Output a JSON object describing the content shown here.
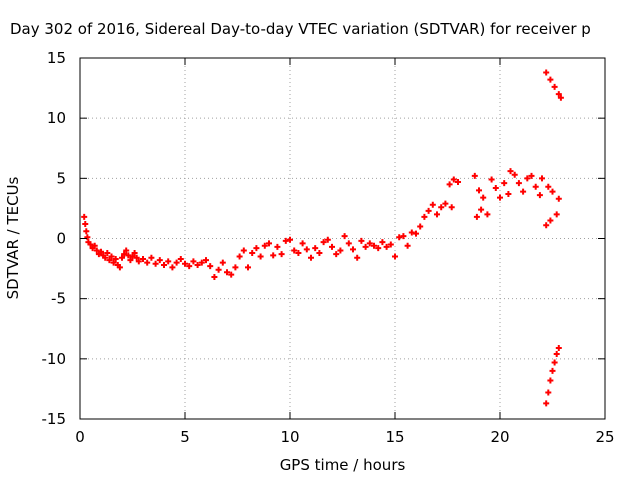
{
  "chart_data": {
    "type": "scatter",
    "title": "Day 302 of 2016, Sidereal Day-to-day VTEC variation (SDTVAR) for receiver p",
    "xlabel": "GPS time / hours",
    "ylabel": "SDTVAR / TECUs",
    "xlim": [
      0,
      25
    ],
    "ylim": [
      -15,
      15
    ],
    "xticks": [
      0,
      5,
      10,
      15,
      20,
      25
    ],
    "yticks": [
      -15,
      -10,
      -5,
      0,
      5,
      10,
      15
    ],
    "grid": true,
    "marker": "plus",
    "color": "#ff0000",
    "series": [
      {
        "name": "SDTVAR",
        "points": [
          [
            0.2,
            1.8
          ],
          [
            0.25,
            1.2
          ],
          [
            0.3,
            0.6
          ],
          [
            0.35,
            0.1
          ],
          [
            0.4,
            -0.3
          ],
          [
            0.5,
            -0.5
          ],
          [
            0.6,
            -0.8
          ],
          [
            0.7,
            -0.6
          ],
          [
            0.8,
            -1.0
          ],
          [
            0.9,
            -1.3
          ],
          [
            1.0,
            -1.1
          ],
          [
            1.1,
            -1.4
          ],
          [
            1.2,
            -1.6
          ],
          [
            1.3,
            -1.2
          ],
          [
            1.4,
            -1.8
          ],
          [
            1.5,
            -1.5
          ],
          [
            1.6,
            -2.0
          ],
          [
            1.7,
            -1.7
          ],
          [
            1.8,
            -2.2
          ],
          [
            1.9,
            -2.4
          ],
          [
            2.0,
            -1.6
          ],
          [
            2.1,
            -1.3
          ],
          [
            2.2,
            -1.0
          ],
          [
            2.3,
            -1.4
          ],
          [
            2.4,
            -1.8
          ],
          [
            2.5,
            -1.5
          ],
          [
            2.6,
            -1.2
          ],
          [
            2.7,
            -1.6
          ],
          [
            2.8,
            -1.9
          ],
          [
            3.0,
            -1.7
          ],
          [
            3.2,
            -2.0
          ],
          [
            3.4,
            -1.6
          ],
          [
            3.6,
            -2.1
          ],
          [
            3.8,
            -1.8
          ],
          [
            4.0,
            -2.2
          ],
          [
            4.2,
            -1.9
          ],
          [
            4.4,
            -2.4
          ],
          [
            4.6,
            -2.0
          ],
          [
            4.8,
            -1.7
          ],
          [
            5.0,
            -2.1
          ],
          [
            5.2,
            -2.3
          ],
          [
            5.4,
            -1.9
          ],
          [
            5.6,
            -2.2
          ],
          [
            5.8,
            -2.0
          ],
          [
            6.0,
            -1.8
          ],
          [
            6.2,
            -2.3
          ],
          [
            6.4,
            -3.2
          ],
          [
            6.6,
            -2.6
          ],
          [
            6.8,
            -2.0
          ],
          [
            7.0,
            -2.8
          ],
          [
            7.2,
            -3.0
          ],
          [
            7.4,
            -2.4
          ],
          [
            7.6,
            -1.5
          ],
          [
            7.8,
            -1.0
          ],
          [
            8.0,
            -2.4
          ],
          [
            8.2,
            -1.2
          ],
          [
            8.4,
            -0.8
          ],
          [
            8.6,
            -1.5
          ],
          [
            8.8,
            -0.6
          ],
          [
            9.0,
            -0.4
          ],
          [
            9.2,
            -1.4
          ],
          [
            9.4,
            -0.7
          ],
          [
            9.6,
            -1.3
          ],
          [
            9.8,
            -0.2
          ],
          [
            10.0,
            -0.1
          ],
          [
            10.2,
            -1.0
          ],
          [
            10.4,
            -1.2
          ],
          [
            10.6,
            -0.4
          ],
          [
            10.8,
            -0.9
          ],
          [
            11.0,
            -1.6
          ],
          [
            11.2,
            -0.8
          ],
          [
            11.4,
            -1.2
          ],
          [
            11.6,
            -0.3
          ],
          [
            11.8,
            -0.1
          ],
          [
            12.0,
            -0.7
          ],
          [
            12.2,
            -1.3
          ],
          [
            12.4,
            -1.0
          ],
          [
            12.6,
            0.2
          ],
          [
            12.8,
            -0.4
          ],
          [
            13.0,
            -0.9
          ],
          [
            13.2,
            -1.6
          ],
          [
            13.4,
            -0.2
          ],
          [
            13.6,
            -0.7
          ],
          [
            13.8,
            -0.4
          ],
          [
            14.0,
            -0.6
          ],
          [
            14.2,
            -0.8
          ],
          [
            14.4,
            -0.3
          ],
          [
            14.6,
            -0.7
          ],
          [
            14.8,
            -0.5
          ],
          [
            15.0,
            -1.5
          ],
          [
            15.2,
            0.1
          ],
          [
            15.4,
            0.2
          ],
          [
            15.6,
            -0.6
          ],
          [
            15.8,
            0.5
          ],
          [
            16.0,
            0.4
          ],
          [
            16.2,
            1.0
          ],
          [
            16.4,
            1.8
          ],
          [
            16.6,
            2.3
          ],
          [
            16.8,
            2.8
          ],
          [
            17.0,
            2.0
          ],
          [
            17.2,
            2.6
          ],
          [
            17.4,
            2.9
          ],
          [
            17.6,
            4.5
          ],
          [
            17.8,
            4.9
          ],
          [
            18.0,
            4.7
          ],
          [
            17.7,
            2.6
          ],
          [
            18.8,
            5.2
          ],
          [
            19.0,
            4.0
          ],
          [
            18.9,
            1.8
          ],
          [
            19.1,
            2.4
          ],
          [
            19.2,
            3.4
          ],
          [
            19.4,
            2.0
          ],
          [
            19.6,
            4.9
          ],
          [
            19.8,
            4.2
          ],
          [
            20.0,
            3.4
          ],
          [
            20.2,
            4.6
          ],
          [
            20.4,
            3.7
          ],
          [
            20.5,
            5.6
          ],
          [
            20.7,
            5.3
          ],
          [
            20.9,
            4.6
          ],
          [
            21.1,
            3.9
          ],
          [
            21.3,
            5.0
          ],
          [
            21.5,
            5.2
          ],
          [
            21.7,
            4.3
          ],
          [
            21.9,
            3.6
          ],
          [
            22.0,
            5.0
          ],
          [
            22.2,
            13.8
          ],
          [
            22.4,
            13.2
          ],
          [
            22.6,
            12.6
          ],
          [
            22.8,
            12.0
          ],
          [
            22.9,
            11.7
          ],
          [
            22.3,
            4.3
          ],
          [
            22.5,
            3.9
          ],
          [
            22.8,
            3.3
          ],
          [
            22.2,
            1.1
          ],
          [
            22.4,
            1.5
          ],
          [
            22.7,
            2.0
          ],
          [
            22.2,
            -13.7
          ],
          [
            22.3,
            -12.8
          ],
          [
            22.4,
            -11.8
          ],
          [
            22.5,
            -11.0
          ],
          [
            22.6,
            -10.3
          ],
          [
            22.7,
            -9.6
          ],
          [
            22.8,
            -9.1
          ]
        ]
      }
    ]
  }
}
